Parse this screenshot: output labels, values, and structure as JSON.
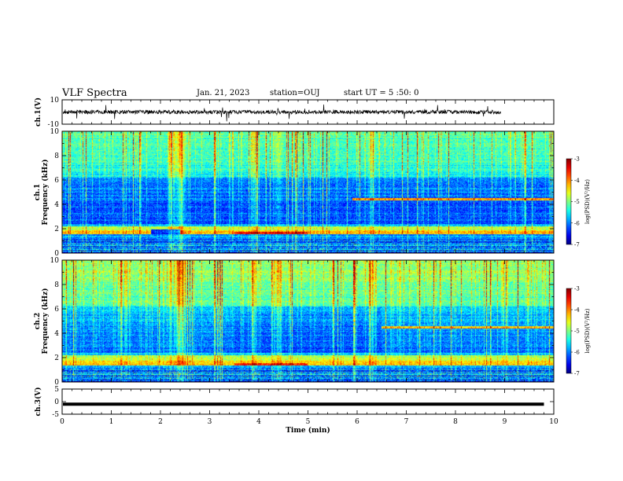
{
  "header": {
    "title": "VLF Spectra",
    "date": "Jan. 21, 2023",
    "station": "station=OUJ",
    "start": "start UT =  5 :50: 0"
  },
  "chart_data": [
    {
      "type": "line",
      "panel": "ch1_waveform",
      "ylabel": "ch.1(V)",
      "yticks": [
        "10",
        "-10"
      ],
      "ylim": [
        -10,
        10
      ],
      "xlim": [
        0,
        10
      ],
      "series": [
        {
          "description_level_V": 0.0,
          "color": "#000000"
        }
      ]
    },
    {
      "type": "heatmap",
      "panel": "ch1_spectrogram",
      "ylabel_top": "ch.1",
      "ylabel": "Frequency (kHz)",
      "yticks": [
        "0",
        "2",
        "4",
        "6",
        "8",
        "10"
      ],
      "ylim": [
        0,
        10
      ],
      "xlim": [
        0,
        10
      ],
      "colorbar": {
        "label": "log(PSD)(V²/Hz)",
        "ticks": [
          "-3",
          "-4",
          "-5",
          "-6",
          "-7"
        ],
        "range": [
          -7,
          -3
        ]
      },
      "features": {
        "background_log_psd": -5.6,
        "band_khz": [
          1.5,
          1.9
        ],
        "band_gap_min": [
          1.8,
          2.4
        ],
        "upper_line_khz": 4.4,
        "upper_line_start_min": 5.9
      }
    },
    {
      "type": "heatmap",
      "panel": "ch2_spectrogram",
      "ylabel_top": "ch.2",
      "ylabel": "Frequency (kHz)",
      "yticks": [
        "0",
        "2",
        "4",
        "6",
        "8",
        "10"
      ],
      "ylim": [
        0,
        10
      ],
      "xlim": [
        0,
        10
      ],
      "colorbar": {
        "label": "log(PSD)(V²/Hz)",
        "ticks": [
          "-3",
          "-4",
          "-5",
          "-6",
          "-7"
        ],
        "range": [
          -7,
          -3
        ]
      },
      "features": {
        "background_log_psd": -5.4,
        "band_khz": [
          1.3,
          1.9
        ],
        "upper_line_khz": 4.5,
        "upper_line_start_min": 6.5
      }
    },
    {
      "type": "line",
      "panel": "ch3_waveform",
      "ylabel": "ch.3(V)",
      "yticks": [
        "5",
        "0",
        "-5"
      ],
      "ylim": [
        -5,
        5
      ],
      "xlim": [
        0,
        10
      ],
      "series": [
        {
          "level_V": -1.0,
          "color": "#000000"
        }
      ]
    }
  ],
  "xaxis": {
    "label": "Time (min)",
    "ticks": [
      "0",
      "1",
      "2",
      "3",
      "4",
      "5",
      "6",
      "7",
      "8",
      "9",
      "10"
    ]
  }
}
